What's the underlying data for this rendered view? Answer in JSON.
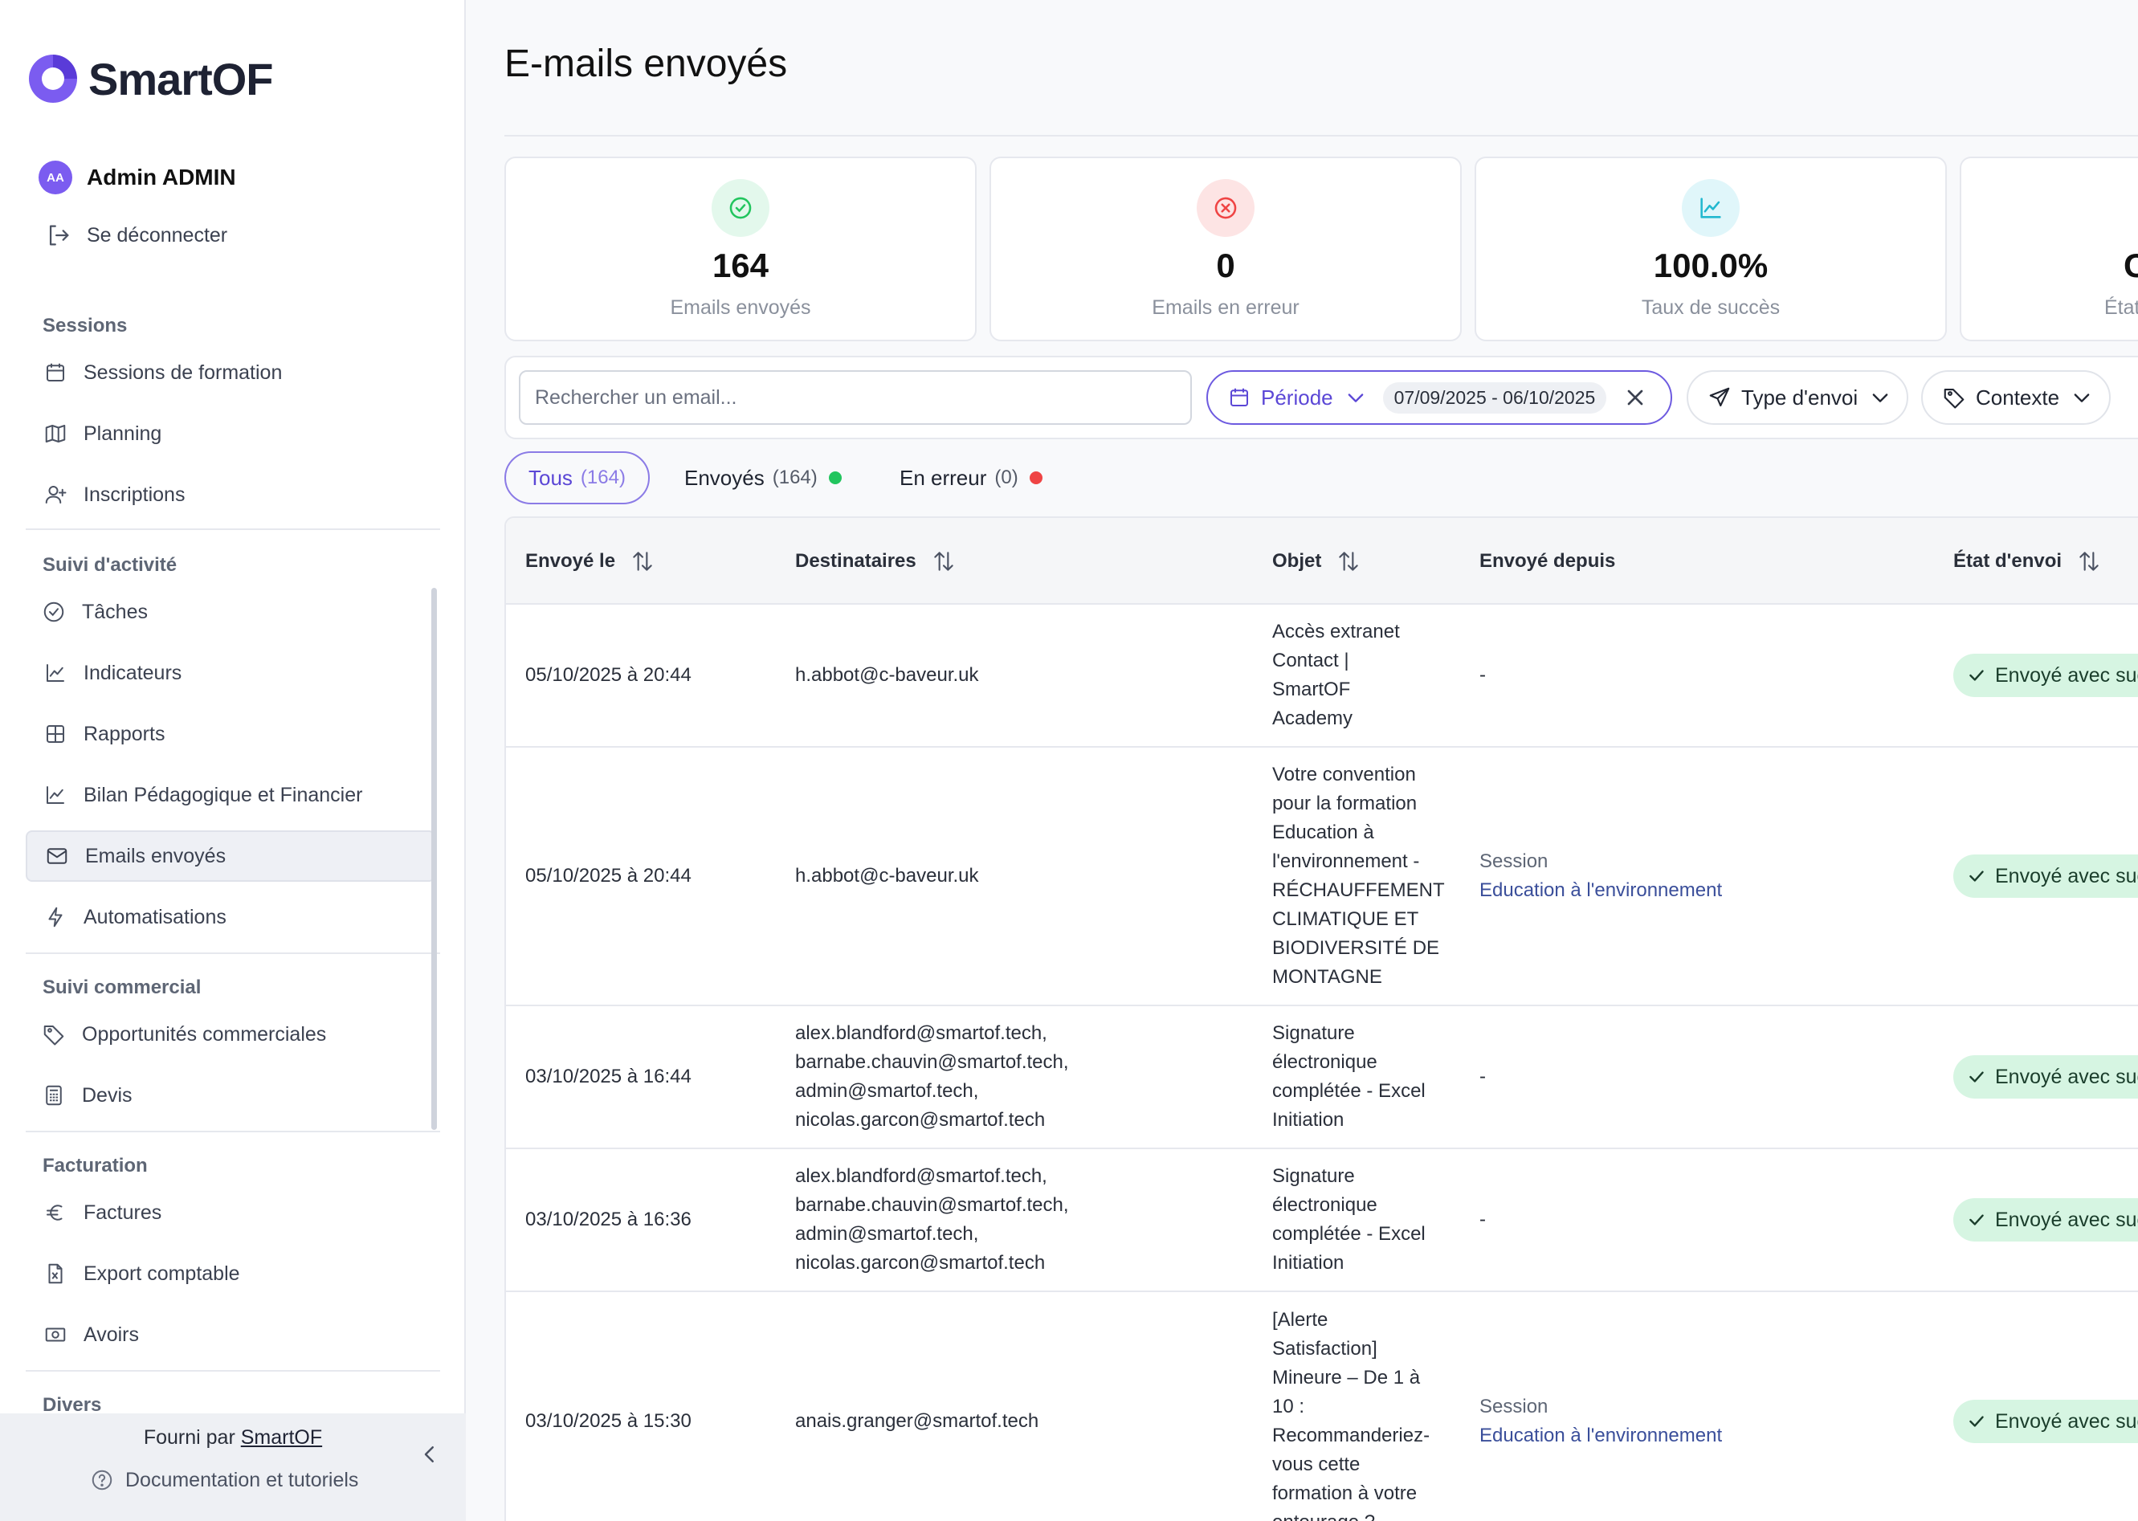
{
  "app": {
    "logo_text": "SmartOF"
  },
  "user": {
    "initials": "AA",
    "name": "Admin ADMIN",
    "logout_label": "Se déconnecter"
  },
  "sidebar": {
    "sections": [
      {
        "title": "Sessions",
        "items": [
          {
            "label": "Sessions de formation",
            "icon": "calendar-icon"
          },
          {
            "label": "Planning",
            "icon": "map-icon"
          },
          {
            "label": "Inscriptions",
            "icon": "user-plus-icon"
          }
        ]
      },
      {
        "title": "Suivi d'activité",
        "items": [
          {
            "label": "Tâches",
            "icon": "check-circle-icon"
          },
          {
            "label": "Indicateurs",
            "icon": "chart-line-icon"
          },
          {
            "label": "Rapports",
            "icon": "table-icon"
          },
          {
            "label": "Bilan Pédagogique et Financier",
            "icon": "chart-line-icon"
          },
          {
            "label": "Emails envoyés",
            "icon": "mail-icon",
            "active": true
          },
          {
            "label": "Automatisations",
            "icon": "bolt-icon"
          }
        ]
      },
      {
        "title": "Suivi commercial",
        "items": [
          {
            "label": "Opportunités commerciales",
            "icon": "tag-icon"
          },
          {
            "label": "Devis",
            "icon": "calculator-icon"
          }
        ]
      },
      {
        "title": "Facturation",
        "items": [
          {
            "label": "Factures",
            "icon": "euro-icon"
          },
          {
            "label": "Export comptable",
            "icon": "file-excel-icon"
          },
          {
            "label": "Avoirs",
            "icon": "banknote-icon"
          }
        ]
      },
      {
        "title": "Divers",
        "items": []
      }
    ],
    "footer": {
      "provided_prefix": "Fourni par",
      "provided_link": "SmartOF",
      "docs_label": "Documentation et tutoriels"
    }
  },
  "page": {
    "title": "E-mails envoyés"
  },
  "stats": [
    {
      "value": "164",
      "label": "Emails envoyés",
      "icon": "check-circle-icon",
      "color": "#22c55e"
    },
    {
      "value": "0",
      "label": "Emails en erreur",
      "icon": "x-circle-icon",
      "color": "#ef4444"
    },
    {
      "value": "100.0%",
      "label": "Taux de succès",
      "icon": "trend-icon",
      "color": "#22b8cf"
    },
    {
      "value": "C",
      "label": "État",
      "icon": "",
      "color": ""
    }
  ],
  "filters": {
    "search_placeholder": "Rechercher un email...",
    "periode_label": "Période",
    "date_range": "07/09/2025 - 06/10/2025",
    "type_label": "Type d'envoi",
    "contexte_label": "Contexte"
  },
  "tabs": [
    {
      "label": "Tous",
      "count": "(164)",
      "active": true
    },
    {
      "label": "Envoyés",
      "count": "(164)",
      "dot": "#22c55e"
    },
    {
      "label": "En erreur",
      "count": "(0)",
      "dot": "#ef4444"
    }
  ],
  "table": {
    "headers": {
      "sent_at": "Envoyé le",
      "recipients": "Destinataires",
      "subject": "Objet",
      "sent_from": "Envoyé depuis",
      "status": "État d'envoi"
    },
    "rows": [
      {
        "sent_at": "05/10/2025 à 20:44",
        "recipients": [
          "h.abbot@c-baveur.uk"
        ],
        "subject": [
          "Accès extranet",
          "Contact |",
          "SmartOF",
          "Academy"
        ],
        "from_label": "",
        "from_value": "-",
        "status": "Envoyé avec succès"
      },
      {
        "sent_at": "05/10/2025 à 20:44",
        "recipients": [
          "h.abbot@c-baveur.uk"
        ],
        "subject": [
          "Votre convention",
          "pour la formation",
          "Education à",
          "l'environnement -",
          "RÉCHAUFFEMENT",
          "CLIMATIQUE ET",
          "BIODIVERSITÉ DE",
          "MONTAGNE"
        ],
        "from_label": "Session",
        "from_value": "Education à l'environnement",
        "status": "Envoyé avec succès"
      },
      {
        "sent_at": "03/10/2025 à 16:44",
        "recipients": [
          "alex.blandford@smartof.tech,",
          "barnabe.chauvin@smartof.tech,",
          "admin@smartof.tech,",
          "nicolas.garcon@smartof.tech"
        ],
        "subject": [
          "Signature",
          "électronique",
          "complétée - Excel",
          "Initiation"
        ],
        "from_label": "",
        "from_value": "-",
        "status": "Envoyé avec succès"
      },
      {
        "sent_at": "03/10/2025 à 16:36",
        "recipients": [
          "alex.blandford@smartof.tech,",
          "barnabe.chauvin@smartof.tech,",
          "admin@smartof.tech,",
          "nicolas.garcon@smartof.tech"
        ],
        "subject": [
          "Signature",
          "électronique",
          "complétée - Excel",
          "Initiation"
        ],
        "from_label": "",
        "from_value": "-",
        "status": "Envoyé avec succès"
      },
      {
        "sent_at": "03/10/2025 à 15:30",
        "recipients": [
          "anais.granger@smartof.tech"
        ],
        "subject": [
          "[Alerte",
          "Satisfaction]",
          "Mineure – De 1 à",
          "10 :",
          "Recommanderiez-",
          "vous cette",
          "formation à votre",
          "entourage ? –"
        ],
        "from_label": "Session",
        "from_value": "Education à l'environnement",
        "status": "Envoyé avec succès"
      }
    ]
  }
}
